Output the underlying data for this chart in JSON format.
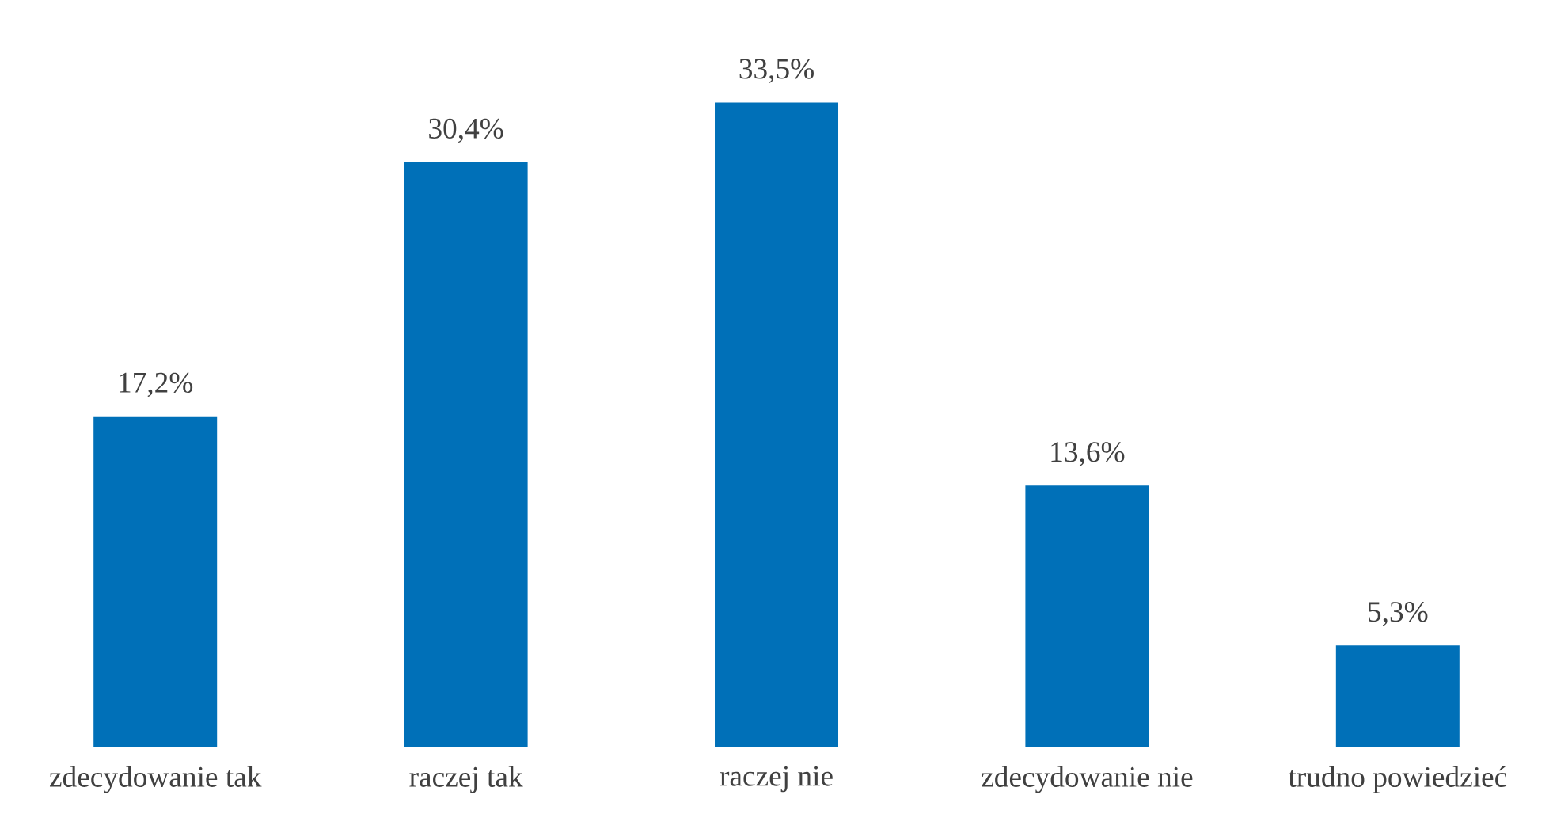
{
  "chart_data": {
    "type": "bar",
    "categories": [
      "zdecydowanie tak",
      "raczej tak",
      "raczej nie",
      "zdecydowanie nie",
      "trudno powiedzieć"
    ],
    "values": [
      17.2,
      30.4,
      33.5,
      13.6,
      5.3
    ],
    "value_labels": [
      "17,2%",
      "30,4%",
      "33,5%",
      "13,6%",
      "5,3%"
    ],
    "color": "#0070b8"
  }
}
